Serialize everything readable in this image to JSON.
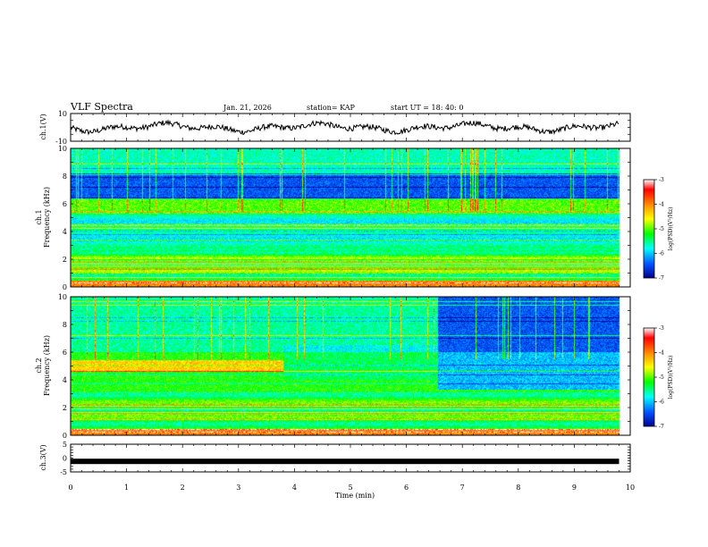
{
  "header": {
    "title": "VLF Spectra",
    "date": "Jan. 21, 2026",
    "station": "station= KAP",
    "start": "start  UT =   18: 40: 0"
  },
  "colors": {
    "ink": "#000000",
    "background": "#ffffff"
  },
  "chart_data": {
    "type": "heatmap",
    "x": {
      "label": "Time (min)",
      "range": [
        0,
        10
      ],
      "ticks": [
        "0",
        "1",
        "2",
        "3",
        "4",
        "5",
        "6",
        "7",
        "8",
        "9",
        "10"
      ],
      "data_end": 9.8
    },
    "panels": [
      {
        "id": "ch1-waveform",
        "type": "line",
        "ylabel": "ch.1(V)",
        "yrange": [
          -10,
          10
        ],
        "ytick_labels": [
          {
            "v": 10,
            "t": "10"
          },
          {
            "v": -10,
            "t": "-10"
          }
        ]
      },
      {
        "id": "ch1-spectrogram",
        "type": "heatmap",
        "ylabel_line1": "ch.1",
        "ylabel_line2": "Frequency (kHz)",
        "yrange": [
          0,
          10
        ],
        "ytick_labels": [
          "0",
          "2",
          "4",
          "6",
          "8",
          "10"
        ],
        "colorbar": {
          "label": "log(PSD)(V²/Hz)",
          "range": [
            -7,
            -3
          ],
          "ticks": [
            "-3",
            "-4",
            "-5",
            "-6",
            "-7"
          ]
        }
      },
      {
        "id": "ch2-spectrogram",
        "type": "heatmap",
        "ylabel_line1": "ch.2",
        "ylabel_line2": "Frequency (kHz)",
        "yrange": [
          0,
          10
        ],
        "ytick_labels": [
          "0",
          "2",
          "4",
          "6",
          "8",
          "10"
        ],
        "transitions_min": [
          3.8,
          6.55
        ],
        "colorbar": {
          "label": "log(PSD)(V²/Hz)",
          "range": [
            -7,
            -3
          ],
          "ticks": [
            "-3",
            "-4",
            "-5",
            "-6",
            "-7"
          ]
        }
      },
      {
        "id": "ch3-waveform",
        "type": "line",
        "ylabel": "ch.3(V)",
        "yrange": [
          -5,
          5
        ],
        "ytick_labels": [
          {
            "v": 5,
            "t": "5"
          },
          {
            "v": 0,
            "t": "0"
          },
          {
            "v": -5,
            "t": "-5"
          }
        ],
        "constant_level": -1.2
      }
    ]
  }
}
